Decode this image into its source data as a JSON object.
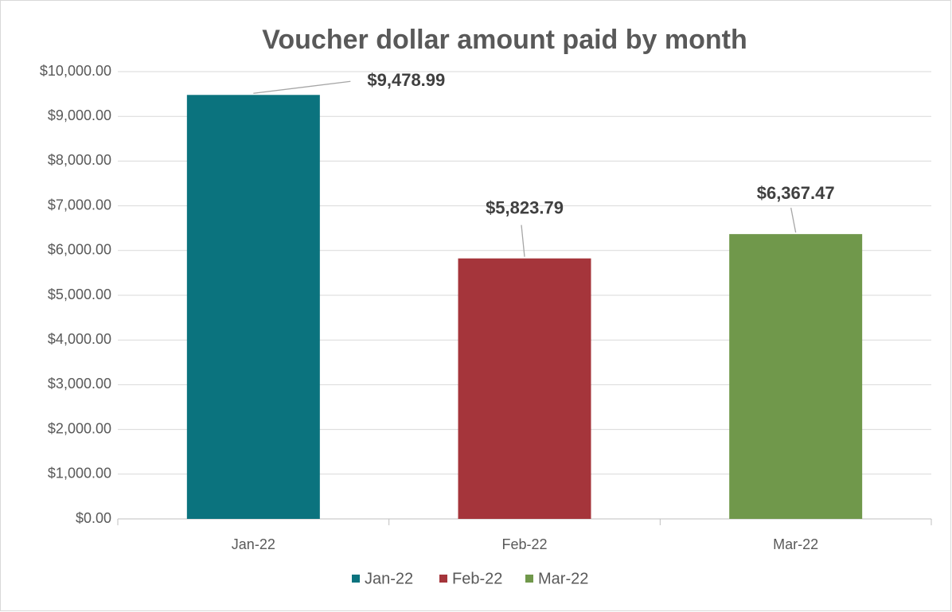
{
  "chart_data": {
    "type": "bar",
    "title": "Voucher dollar amount paid by month",
    "categories": [
      "Jan-22",
      "Feb-22",
      "Mar-22"
    ],
    "values": [
      9478.99,
      5823.79,
      6367.47
    ],
    "value_labels": [
      "$9,478.99",
      "$5,823.79",
      "$6,367.47"
    ],
    "colors": [
      "#0b737e",
      "#a5353b",
      "#70984b"
    ],
    "ylim": [
      0,
      10000
    ],
    "yticks": [
      {
        "value": 0,
        "label": "$0.00"
      },
      {
        "value": 1000,
        "label": "$1,000.00"
      },
      {
        "value": 2000,
        "label": "$2,000.00"
      },
      {
        "value": 3000,
        "label": "$3,000.00"
      },
      {
        "value": 4000,
        "label": "$4,000.00"
      },
      {
        "value": 5000,
        "label": "$5,000.00"
      },
      {
        "value": 6000,
        "label": "$6,000.00"
      },
      {
        "value": 7000,
        "label": "$7,000.00"
      },
      {
        "value": 8000,
        "label": "$8,000.00"
      },
      {
        "value": 9000,
        "label": "$9,000.00"
      },
      {
        "value": 10000,
        "label": "$10,000.00"
      }
    ],
    "grid": true
  }
}
